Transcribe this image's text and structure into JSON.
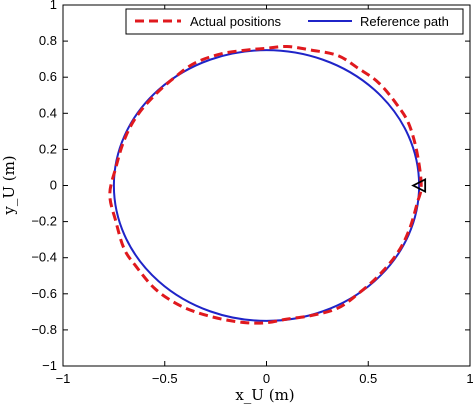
{
  "chart_data": {
    "type": "line",
    "xlabel": "x_U (m)",
    "ylabel": "y_U (m)",
    "xlim": [
      -1,
      1
    ],
    "ylim": [
      -1,
      1
    ],
    "xticks": [
      -1,
      -0.5,
      0,
      0.5,
      1
    ],
    "xtick_labels": [
      "−1",
      "−0.5",
      "0",
      "0.5",
      "1"
    ],
    "yticks": [
      -1,
      -0.8,
      -0.6,
      -0.4,
      -0.2,
      0,
      0.2,
      0.4,
      0.6,
      0.8,
      1
    ],
    "ytick_labels": [
      "−1",
      "−0.8",
      "−0.6",
      "−0.4",
      "−0.2",
      "0",
      "0.2",
      "0.4",
      "0.6",
      "0.8",
      "1"
    ],
    "grid": false,
    "legend_position": "top-right",
    "series": [
      {
        "name": "Actual positions",
        "style": "dashed",
        "color": "#e0191e",
        "x": [
          0.76,
          0.74,
          0.7,
          0.64,
          0.55,
          0.45,
          0.35,
          0.22,
          0.1,
          0.0,
          -0.1,
          -0.22,
          -0.35,
          -0.45,
          -0.55,
          -0.64,
          -0.7,
          -0.74,
          -0.77,
          -0.74,
          -0.7,
          -0.64,
          -0.55,
          -0.45,
          -0.35,
          -0.22,
          -0.1,
          0.0,
          0.1,
          0.22,
          0.35,
          0.45,
          0.55,
          0.64,
          0.7,
          0.74,
          0.76
        ],
        "y": [
          0.0,
          0.18,
          0.34,
          0.45,
          0.57,
          0.65,
          0.72,
          0.75,
          0.77,
          0.76,
          0.75,
          0.73,
          0.68,
          0.6,
          0.5,
          0.38,
          0.25,
          0.1,
          -0.05,
          -0.2,
          -0.35,
          -0.45,
          -0.57,
          -0.65,
          -0.7,
          -0.74,
          -0.76,
          -0.76,
          -0.74,
          -0.72,
          -0.68,
          -0.6,
          -0.5,
          -0.38,
          -0.25,
          -0.1,
          0.0
        ]
      },
      {
        "name": "Reference path",
        "style": "solid",
        "color": "#1f24c8",
        "shape": "circle",
        "center": [
          0,
          0
        ],
        "radius": 0.75
      }
    ],
    "markers": [
      {
        "shape": "triangle-left",
        "x": 0.76,
        "y": 0.0,
        "color": "#000000"
      }
    ]
  }
}
